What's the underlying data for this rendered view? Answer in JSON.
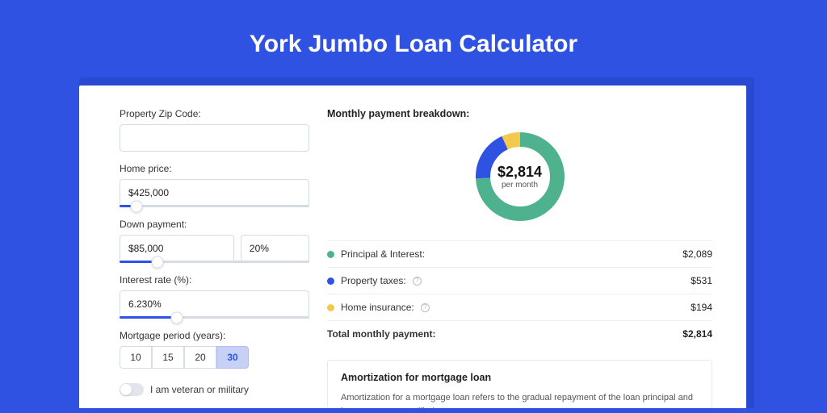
{
  "page": {
    "title": "York Jumbo Loan Calculator",
    "background_color": "#3052e3",
    "shadow_color": "#2a49d1",
    "card_bg": "#ffffff"
  },
  "form": {
    "zip": {
      "label": "Property Zip Code:",
      "value": ""
    },
    "home_price": {
      "label": "Home price:",
      "value": "$425,000",
      "slider_pct": 9
    },
    "down_payment": {
      "label": "Down payment:",
      "amount": "$85,000",
      "percent": "20%",
      "slider_pct": 20
    },
    "interest_rate": {
      "label": "Interest rate (%):",
      "value": "6.230%",
      "slider_pct": 30
    },
    "mortgage_period": {
      "label": "Mortgage period (years):",
      "options": [
        "10",
        "15",
        "20",
        "30"
      ],
      "active_index": 3
    },
    "veteran": {
      "label": "I am veteran or military",
      "checked": false
    }
  },
  "breakdown": {
    "title": "Monthly payment breakdown:",
    "center_amount": "$2,814",
    "center_sub": "per month",
    "donut": {
      "circumference": 289.03,
      "segments": [
        {
          "name": "principal-interest",
          "color": "#4eb28e",
          "fraction": 0.742
        },
        {
          "name": "property-taxes",
          "color": "#3052e3",
          "fraction": 0.189
        },
        {
          "name": "home-insurance",
          "color": "#f2c94c",
          "fraction": 0.069
        }
      ],
      "stroke_width": 18,
      "radius": 46
    },
    "rows": [
      {
        "key": "principal-interest",
        "label": "Principal & Interest:",
        "value": "$2,089",
        "color": "#4eb28e",
        "info": false
      },
      {
        "key": "property-taxes",
        "label": "Property taxes:",
        "value": "$531",
        "color": "#3052e3",
        "info": true
      },
      {
        "key": "home-insurance",
        "label": "Home insurance:",
        "value": "$194",
        "color": "#f2c94c",
        "info": true
      }
    ],
    "total": {
      "label": "Total monthly payment:",
      "value": "$2,814"
    }
  },
  "amortization": {
    "title": "Amortization for mortgage loan",
    "text": "Amortization for a mortgage loan refers to the gradual repayment of the loan principal and interest over a specified"
  }
}
